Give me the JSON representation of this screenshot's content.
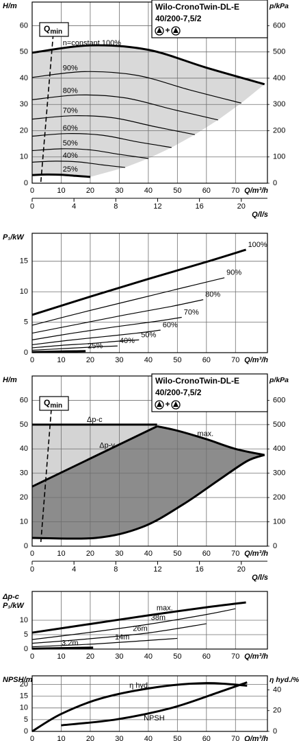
{
  "chart_data": [
    {
      "type": "line",
      "y_label": "H/m",
      "y2_label": "p/kPa",
      "x_label": "Q/m³/h",
      "x2_label": "Q/l/s",
      "xlim": [
        0,
        81
      ],
      "xticks": [
        0,
        10,
        20,
        30,
        40,
        50,
        60,
        70
      ],
      "x2lim": [
        0,
        22.5
      ],
      "x2ticks": [
        0,
        4,
        8,
        12,
        16,
        20
      ],
      "ylim": [
        0,
        69
      ],
      "yticks": [
        0,
        10,
        20,
        30,
        40,
        50,
        60
      ],
      "y2lim": [
        0,
        690
      ],
      "y2ticks": [
        0,
        100,
        200,
        300,
        400,
        500,
        600
      ],
      "grid": true,
      "shade": "speed-range",
      "shade_color": "#d9d9d9",
      "title_box": {
        "lines": [
          "Wilo-CronoTwin-DL-E",
          "40/200-7,5/2"
        ],
        "separator": "+"
      },
      "qmin": {
        "label": "Q",
        "label_sub": "min",
        "x": [
          3,
          7.5
        ],
        "values": [
          0.5,
          60
        ]
      },
      "series": [
        {
          "name": "n=constant 100%",
          "color": "#000000",
          "weight": "bold",
          "x": [
            0,
            20,
            40,
            60,
            80
          ],
          "values": [
            49.7,
            52.5,
            50.8,
            44,
            37.7
          ]
        },
        {
          "name": "90%",
          "color": "#000000",
          "weight": "thin",
          "x": [
            0,
            18,
            36,
            54,
            72
          ],
          "values": [
            40.3,
            42.5,
            41.1,
            35.6,
            30.5
          ]
        },
        {
          "name": "80%",
          "color": "#000000",
          "weight": "thin",
          "x": [
            0,
            16,
            32,
            48,
            64
          ],
          "values": [
            31.8,
            33.6,
            32.5,
            28.2,
            24.1
          ]
        },
        {
          "name": "70%",
          "color": "#000000",
          "weight": "thin",
          "x": [
            0,
            14,
            28,
            42,
            56
          ],
          "values": [
            24.4,
            25.7,
            24.9,
            21.6,
            18.5
          ]
        },
        {
          "name": "60%",
          "color": "#000000",
          "weight": "thin",
          "x": [
            0,
            12,
            24,
            36,
            48
          ],
          "values": [
            17.9,
            18.9,
            18.3,
            15.8,
            13.6
          ]
        },
        {
          "name": "50%",
          "color": "#000000",
          "weight": "thin",
          "x": [
            0,
            10,
            20,
            30,
            40
          ],
          "values": [
            12.4,
            13.1,
            12.7,
            11,
            9.4
          ]
        },
        {
          "name": "40%",
          "color": "#000000",
          "weight": "thin",
          "x": [
            0,
            8,
            16,
            24,
            32
          ],
          "values": [
            8,
            8.4,
            8.1,
            7,
            6
          ]
        },
        {
          "name": "25%",
          "color": "#000000",
          "weight": "bold",
          "x": [
            0,
            5,
            10,
            15,
            20
          ],
          "values": [
            3.1,
            3.3,
            3.2,
            2.8,
            2.4
          ]
        }
      ]
    },
    {
      "type": "line",
      "y_label": "P₁/kW",
      "x_label": "Q/m³/h",
      "xlim": [
        0,
        81
      ],
      "xticks": [
        0,
        10,
        20,
        30,
        40,
        50,
        60,
        70
      ],
      "ylim": [
        0,
        19.6
      ],
      "yticks": [
        0,
        5,
        10,
        15
      ],
      "grid": true,
      "series": [
        {
          "name": "100%",
          "color": "#000000",
          "weight": "bold",
          "x": [
            0,
            20,
            40,
            60,
            73.6
          ],
          "values": [
            6.2,
            9.2,
            12.1,
            14.9,
            16.9
          ]
        },
        {
          "name": "90%",
          "color": "#000000",
          "weight": "thin",
          "x": [
            0,
            18,
            36,
            54,
            66.2
          ],
          "values": [
            4.5,
            6.7,
            8.8,
            10.9,
            12.3
          ]
        },
        {
          "name": "80%",
          "color": "#000000",
          "weight": "thin",
          "x": [
            0,
            16,
            32,
            48,
            58.9
          ],
          "values": [
            3.2,
            4.7,
            6.2,
            7.6,
            8.7
          ]
        },
        {
          "name": "70%",
          "color": "#000000",
          "weight": "thin",
          "x": [
            0,
            14,
            28,
            42,
            51.5
          ],
          "values": [
            2.1,
            3.2,
            4.2,
            5.1,
            5.8
          ]
        },
        {
          "name": "60%",
          "color": "#000000",
          "weight": "thin",
          "x": [
            0,
            12,
            24,
            36,
            44.2
          ],
          "values": [
            1.3,
            2,
            2.6,
            3.2,
            3.7
          ]
        },
        {
          "name": "50%",
          "color": "#000000",
          "weight": "thin",
          "x": [
            0,
            10,
            20,
            30,
            36.8
          ],
          "values": [
            0.8,
            1.2,
            1.5,
            1.9,
            2.1
          ]
        },
        {
          "name": "40%",
          "color": "#000000",
          "weight": "thin",
          "x": [
            0,
            8,
            16,
            24,
            29.4
          ],
          "values": [
            0.4,
            0.6,
            0.8,
            1,
            1.1
          ]
        },
        {
          "name": "25%",
          "color": "#000000",
          "weight": "bold",
          "x": [
            0,
            5,
            10,
            15,
            18.4
          ],
          "values": [
            0.1,
            0.14,
            0.19,
            0.23,
            0.26
          ]
        }
      ]
    },
    {
      "type": "line",
      "y_label": "H/m",
      "y2_label": "p/kPa",
      "x_label": "Q/m³/h",
      "x2_label": "Q/l/s",
      "xlim": [
        0,
        81
      ],
      "xticks": [
        0,
        10,
        20,
        30,
        40,
        50,
        60,
        70
      ],
      "x2lim": [
        0,
        22.5
      ],
      "x2ticks": [
        0,
        4,
        8,
        12,
        16,
        20
      ],
      "ylim": [
        0,
        70
      ],
      "yticks": [
        0,
        10,
        20,
        30,
        40,
        50,
        60
      ],
      "y2lim": [
        0,
        700
      ],
      "y2ticks": [
        0,
        100,
        200,
        300,
        400,
        500,
        600
      ],
      "grid": true,
      "shade": "control-range",
      "shade_color": "#d4d4d4",
      "shade_color_dark": "#8c8c8c",
      "title_box": {
        "lines": [
          "Wilo-CronoTwin-DL-E",
          "40/200-7,5/2"
        ],
        "separator": "+"
      },
      "qmin": {
        "label": "Q",
        "label_sub": "min",
        "x": [
          3,
          6.8
        ],
        "values": [
          1.7,
          59.4
        ]
      },
      "series": [
        {
          "name": "Δp-c",
          "color": "#000000",
          "weight": "bold",
          "x": [
            0,
            43
          ],
          "values": [
            50,
            50
          ]
        },
        {
          "name": "Δp-v",
          "color": "#000000",
          "weight": "bold",
          "x": [
            0,
            43
          ],
          "values": [
            24.5,
            49.3
          ]
        },
        {
          "name": "max.",
          "color": "#000000",
          "weight": "bold",
          "x": [
            43,
            50,
            60,
            70,
            80
          ],
          "values": [
            49.3,
            47.5,
            44,
            40,
            37.5
          ]
        },
        {
          "color": "#000000",
          "weight": "bold",
          "x": [
            0,
            22,
            38,
            52,
            64,
            74,
            80
          ],
          "values": [
            3.4,
            3.4,
            7.9,
            17.2,
            27,
            35,
            37.5
          ]
        }
      ]
    },
    {
      "type": "line",
      "y_label_top": "Δp-c",
      "y_label": "P₁/kW",
      "x_label": "Q/m³/h",
      "xlim": [
        0,
        81
      ],
      "xticks": [
        0,
        10,
        20,
        30,
        40,
        50,
        60,
        70
      ],
      "ylim": [
        0,
        20
      ],
      "yticks": [
        0,
        5,
        10
      ],
      "grid": true,
      "series": [
        {
          "name": "max.",
          "color": "#000000",
          "weight": "bold",
          "x": [
            0,
            20,
            40,
            60,
            73.6
          ],
          "values": [
            5.7,
            8.7,
            11.7,
            14.5,
            16.2
          ]
        },
        {
          "name": "38m",
          "color": "#000000",
          "weight": "thin",
          "x": [
            0,
            20,
            40,
            60,
            70
          ],
          "values": [
            3.3,
            5.8,
            8.6,
            12,
            14
          ]
        },
        {
          "name": "26m",
          "color": "#000000",
          "weight": "thin",
          "x": [
            0,
            20,
            40,
            60
          ],
          "values": [
            2,
            3.6,
            5.6,
            8.8
          ]
        },
        {
          "name": "14m",
          "color": "#000000",
          "weight": "thin",
          "x": [
            0,
            20,
            40,
            50
          ],
          "values": [
            0.8,
            1.7,
            3,
            3.7
          ]
        },
        {
          "name": "3.2m",
          "color": "#000000",
          "weight": "bold",
          "x": [
            0,
            21
          ],
          "values": [
            0.15,
            0.5
          ]
        }
      ]
    },
    {
      "type": "line",
      "y_label": "NPSH/m",
      "y2_label": "η hyd./%",
      "x_label": "Q/m³/h",
      "xlim": [
        0,
        81
      ],
      "xticks": [
        0,
        10,
        20,
        30,
        40,
        50,
        60,
        70
      ],
      "ylim": [
        0,
        23.7
      ],
      "yticks": [
        0,
        5,
        10,
        15,
        20
      ],
      "y2lim": [
        0,
        53.5
      ],
      "y2ticks": [
        0,
        20,
        40
      ],
      "grid": true,
      "series": [
        {
          "name": "η hyd.",
          "axis": "y2",
          "color": "#000000",
          "weight": "bold",
          "x": [
            0,
            10,
            24,
            43,
            60,
            74
          ],
          "values": [
            0,
            16.8,
            32,
            42.6,
            46.5,
            44
          ]
        },
        {
          "name": "NPSH",
          "color": "#000000",
          "weight": "bold",
          "x": [
            10,
            29,
            48,
            64,
            74
          ],
          "values": [
            2.6,
            5.1,
            10,
            16.6,
            20.9
          ]
        }
      ]
    }
  ]
}
